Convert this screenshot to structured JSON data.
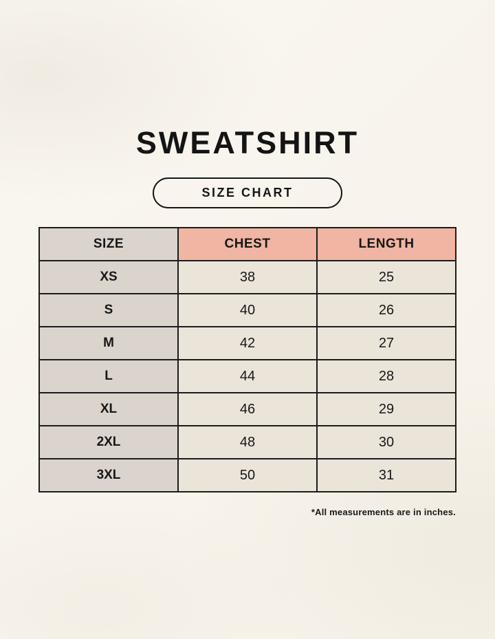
{
  "page": {
    "title": "SWEATSHIRT",
    "badge_label": "SIZE CHART",
    "footnote": "*All measurements are in inches."
  },
  "colors": {
    "background": "#f8f4ec",
    "header_accent": "#f0b5a3",
    "size_column": "#dad4cd",
    "data_cell": "#eae4d9",
    "border": "#1b1b1b",
    "text": "#141414"
  },
  "chart_data": {
    "type": "table",
    "title": "SWEATSHIRT",
    "subtitle": "SIZE CHART",
    "columns": [
      "SIZE",
      "CHEST",
      "LENGTH"
    ],
    "rows": [
      [
        "XS",
        "38",
        "25"
      ],
      [
        "S",
        "40",
        "26"
      ],
      [
        "M",
        "42",
        "27"
      ],
      [
        "L",
        "44",
        "28"
      ],
      [
        "XL",
        "46",
        "29"
      ],
      [
        "2XL",
        "48",
        "30"
      ],
      [
        "3XL",
        "50",
        "31"
      ]
    ],
    "units": "inches",
    "footnote": "*All measurements are in inches."
  }
}
